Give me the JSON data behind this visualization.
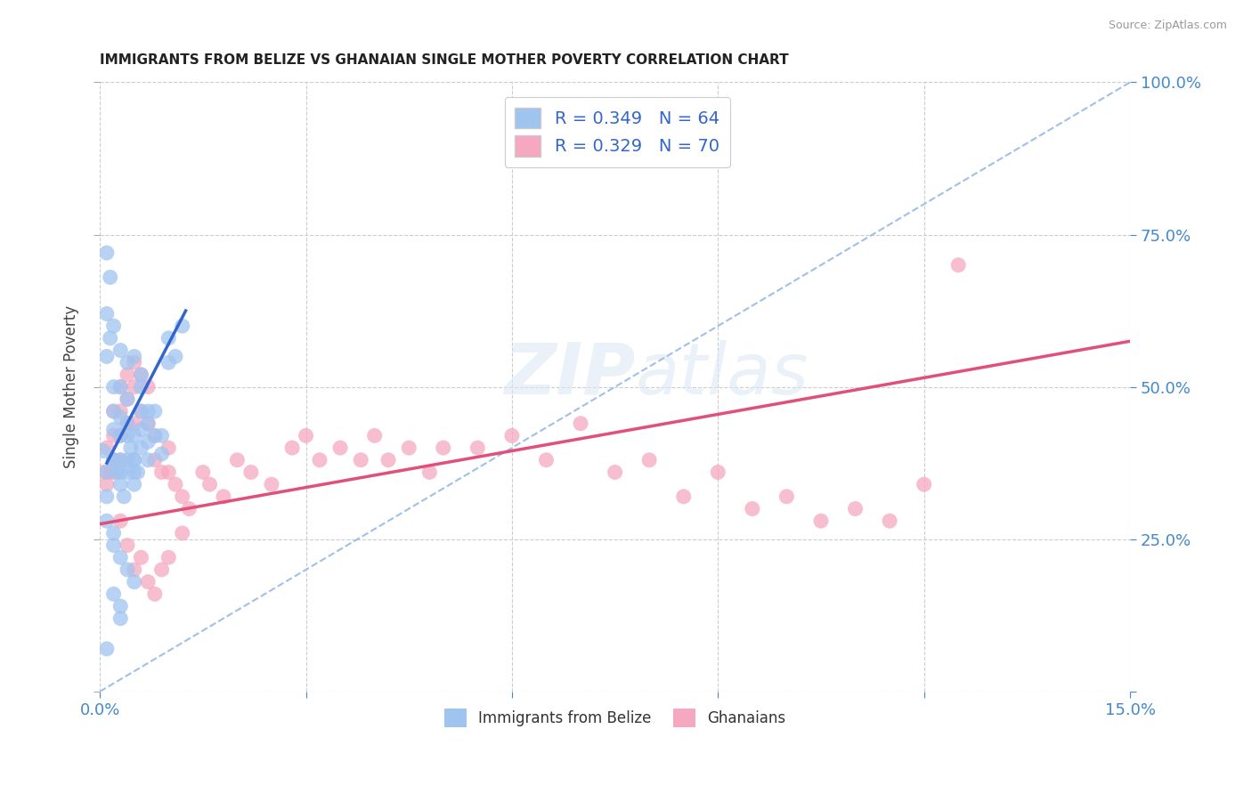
{
  "title": "IMMIGRANTS FROM BELIZE VS GHANAIAN SINGLE MOTHER POVERTY CORRELATION CHART",
  "source": "Source: ZipAtlas.com",
  "ylabel_label": "Single Mother Poverty",
  "xlim": [
    0.0,
    0.15
  ],
  "ylim": [
    0.0,
    1.0
  ],
  "belize_R": 0.349,
  "belize_N": 64,
  "ghana_R": 0.329,
  "ghana_N": 70,
  "belize_color": "#a0c4f0",
  "ghana_color": "#f5a8c0",
  "belize_line_color": "#3366cc",
  "ghana_line_color": "#e0507a",
  "diagonal_color": "#a0c0e8",
  "belize_line_x0": 0.001,
  "belize_line_y0": 0.375,
  "belize_line_x1": 0.0125,
  "belize_line_y1": 0.625,
  "ghana_line_x0": 0.0,
  "ghana_line_y0": 0.275,
  "ghana_line_x1": 0.15,
  "ghana_line_y1": 0.575,
  "belize_scatter_x": [
    0.0005,
    0.001,
    0.001,
    0.0015,
    0.002,
    0.002,
    0.002,
    0.002,
    0.0025,
    0.003,
    0.003,
    0.003,
    0.003,
    0.003,
    0.0035,
    0.004,
    0.004,
    0.004,
    0.004,
    0.0045,
    0.005,
    0.005,
    0.005,
    0.005,
    0.0055,
    0.006,
    0.006,
    0.006,
    0.006,
    0.007,
    0.007,
    0.007,
    0.008,
    0.008,
    0.009,
    0.009,
    0.01,
    0.01,
    0.011,
    0.012,
    0.001,
    0.001,
    0.0015,
    0.002,
    0.002,
    0.003,
    0.003,
    0.004,
    0.004,
    0.005,
    0.005,
    0.006,
    0.007,
    0.003,
    0.004,
    0.005,
    0.002,
    0.002,
    0.003,
    0.001,
    0.001,
    0.002,
    0.003,
    0.001
  ],
  "belize_scatter_y": [
    0.395,
    0.62,
    0.55,
    0.68,
    0.5,
    0.46,
    0.43,
    0.38,
    0.36,
    0.45,
    0.42,
    0.38,
    0.36,
    0.34,
    0.32,
    0.48,
    0.44,
    0.42,
    0.38,
    0.4,
    0.42,
    0.38,
    0.36,
    0.34,
    0.36,
    0.5,
    0.46,
    0.43,
    0.4,
    0.44,
    0.41,
    0.38,
    0.46,
    0.42,
    0.42,
    0.39,
    0.58,
    0.54,
    0.55,
    0.6,
    0.72,
    0.36,
    0.58,
    0.6,
    0.38,
    0.56,
    0.5,
    0.54,
    0.36,
    0.55,
    0.38,
    0.52,
    0.46,
    0.22,
    0.2,
    0.18,
    0.16,
    0.26,
    0.14,
    0.32,
    0.28,
    0.24,
    0.12,
    0.07
  ],
  "ghana_scatter_x": [
    0.0005,
    0.001,
    0.001,
    0.0015,
    0.002,
    0.002,
    0.002,
    0.002,
    0.003,
    0.003,
    0.003,
    0.003,
    0.004,
    0.004,
    0.004,
    0.005,
    0.005,
    0.005,
    0.006,
    0.006,
    0.007,
    0.007,
    0.008,
    0.008,
    0.009,
    0.01,
    0.01,
    0.011,
    0.012,
    0.013,
    0.015,
    0.016,
    0.018,
    0.02,
    0.022,
    0.025,
    0.028,
    0.03,
    0.032,
    0.035,
    0.038,
    0.04,
    0.042,
    0.045,
    0.048,
    0.05,
    0.055,
    0.06,
    0.065,
    0.07,
    0.075,
    0.08,
    0.085,
    0.09,
    0.095,
    0.1,
    0.105,
    0.11,
    0.115,
    0.12,
    0.003,
    0.004,
    0.005,
    0.006,
    0.007,
    0.008,
    0.009,
    0.01,
    0.012,
    0.125
  ],
  "ghana_scatter_y": [
    0.36,
    0.4,
    0.34,
    0.36,
    0.46,
    0.42,
    0.38,
    0.36,
    0.5,
    0.46,
    0.42,
    0.38,
    0.52,
    0.48,
    0.44,
    0.54,
    0.5,
    0.44,
    0.52,
    0.46,
    0.5,
    0.44,
    0.42,
    0.38,
    0.36,
    0.4,
    0.36,
    0.34,
    0.32,
    0.3,
    0.36,
    0.34,
    0.32,
    0.38,
    0.36,
    0.34,
    0.4,
    0.42,
    0.38,
    0.4,
    0.38,
    0.42,
    0.38,
    0.4,
    0.36,
    0.4,
    0.4,
    0.42,
    0.38,
    0.44,
    0.36,
    0.38,
    0.32,
    0.36,
    0.3,
    0.32,
    0.28,
    0.3,
    0.28,
    0.34,
    0.28,
    0.24,
    0.2,
    0.22,
    0.18,
    0.16,
    0.2,
    0.22,
    0.26,
    0.7
  ]
}
